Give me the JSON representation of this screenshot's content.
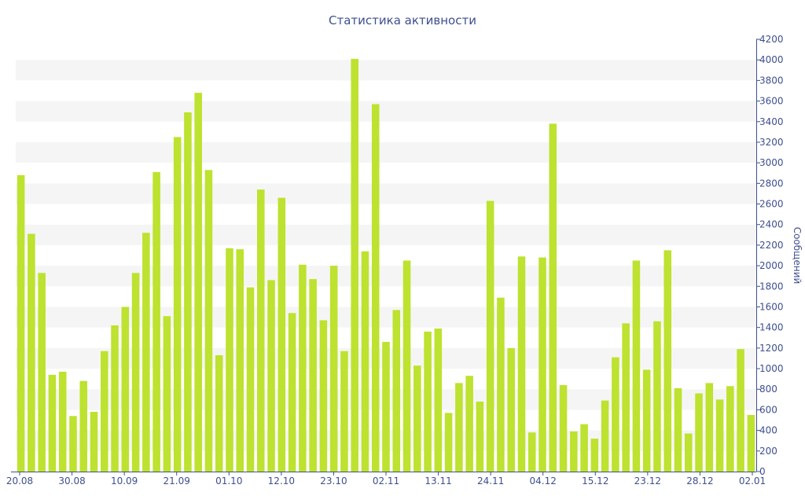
{
  "chart_data": {
    "type": "bar",
    "title": "Статистика активности",
    "xlabel": "",
    "ylabel": "Сообщений",
    "y_axis_position": "right",
    "ylim": [
      0,
      4200
    ],
    "y_ticks": [
      0,
      200,
      400,
      600,
      800,
      1000,
      1200,
      1400,
      1600,
      1800,
      2000,
      2200,
      2400,
      2600,
      2800,
      3000,
      3200,
      3400,
      3600,
      3800,
      4000,
      4200
    ],
    "x_ticks": [
      "20.08",
      "30.08",
      "10.09",
      "21.09",
      "01.10",
      "12.10",
      "23.10",
      "02.11",
      "13.11",
      "24.11",
      "04.12",
      "15.12",
      "23.12",
      "28.12",
      "02.01"
    ],
    "bar_color": "#bde22f",
    "grid": "alternating horizontal bands",
    "values": [
      2880,
      2310,
      1930,
      940,
      970,
      540,
      880,
      580,
      1170,
      1420,
      1600,
      1930,
      2320,
      2910,
      1510,
      3250,
      3490,
      3680,
      2930,
      1130,
      2170,
      2160,
      1790,
      2740,
      1860,
      2660,
      1540,
      2010,
      1870,
      1470,
      2000,
      1170,
      4010,
      2140,
      3570,
      1260,
      1570,
      2050,
      1030,
      1360,
      1390,
      570,
      860,
      930,
      680,
      2630,
      1690,
      1200,
      2090,
      380,
      2080,
      3380,
      840,
      390,
      460,
      320,
      690,
      1110,
      1440,
      2050,
      990,
      1460,
      2150,
      810,
      370,
      760,
      860,
      700,
      830,
      1190,
      550
    ]
  }
}
